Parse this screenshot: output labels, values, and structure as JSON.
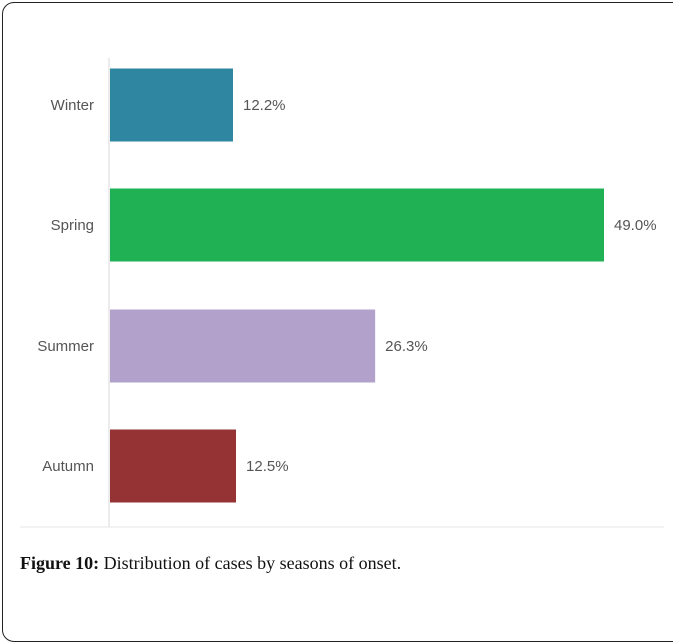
{
  "caption": {
    "label": "Figure 10:",
    "text": "Distribution of cases by seasons of onset."
  },
  "chart_data": {
    "type": "bar",
    "orientation": "horizontal",
    "categories": [
      "Winter",
      "Spring",
      "Summer",
      "Autumn"
    ],
    "values": [
      12.2,
      49.0,
      26.3,
      12.5
    ],
    "value_labels": [
      "12.2%",
      "49.0%",
      "26.3%",
      "12.5%"
    ],
    "colors": [
      "#2e86a0",
      "#1fb153",
      "#b2a2cb",
      "#953334"
    ],
    "title": "",
    "xlabel": "",
    "ylabel": "",
    "xlim": [
      0,
      50
    ],
    "grid": false,
    "legend": "none"
  }
}
